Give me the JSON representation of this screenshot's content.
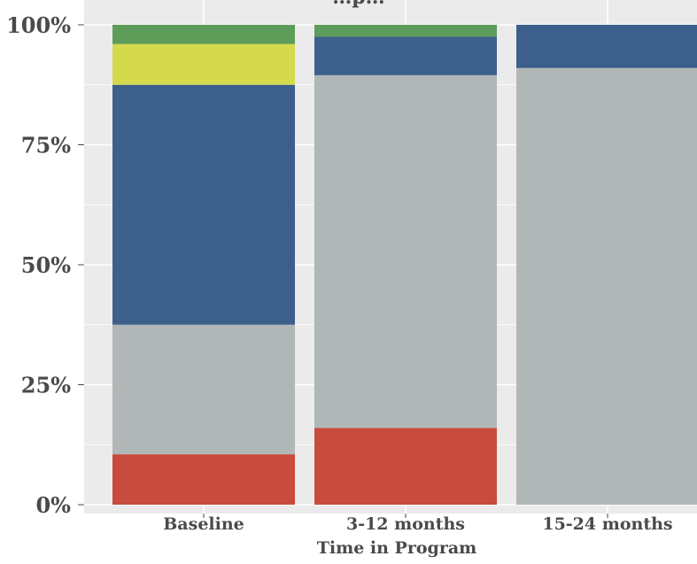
{
  "chart_data": {
    "type": "bar",
    "stacked": true,
    "normalized": true,
    "title": "…p…",
    "xlabel": "Time in Program",
    "ylabel": "",
    "ylim": [
      0,
      100
    ],
    "yticks": [
      "0%",
      "25%",
      "50%",
      "75%",
      "100%"
    ],
    "categories": [
      "Baseline",
      "3-12 months",
      "15-24 months"
    ],
    "series": [
      {
        "color": "#c84b3d",
        "values": [
          10.5,
          16,
          0
        ]
      },
      {
        "color": "#b1b6b6",
        "values": [
          27,
          73.5,
          91
        ]
      },
      {
        "color": "#3d5f8b",
        "values": [
          50,
          8,
          9
        ]
      },
      {
        "color": "#d4da4c",
        "values": [
          8.5,
          0,
          0
        ]
      },
      {
        "color": "#5e9c5a",
        "values": [
          4,
          2.5,
          0
        ]
      }
    ],
    "grid": true,
    "background": "#ebebeb"
  }
}
